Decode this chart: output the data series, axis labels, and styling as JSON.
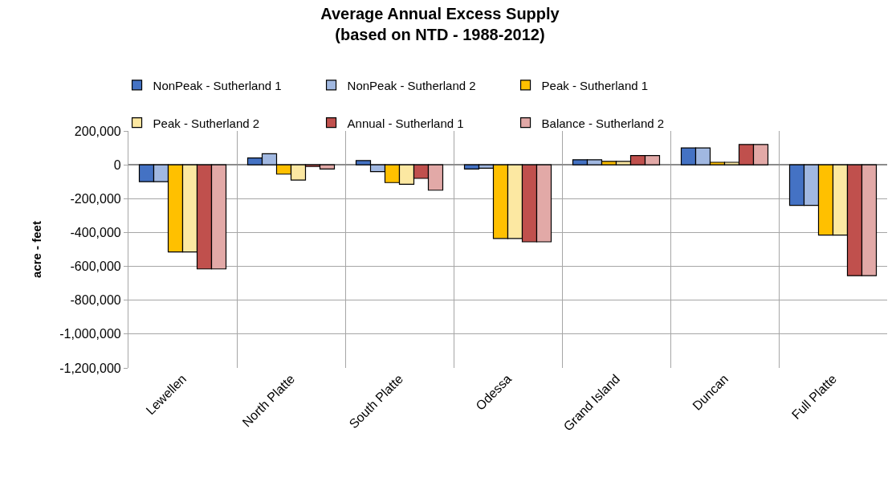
{
  "chart_data": {
    "type": "bar",
    "title": "Average Annual Excess Supply\n(based on NTD - 1988-2012)",
    "ylabel": "acre - feet",
    "categories": [
      "Lewellen",
      "North Platte",
      "South Platte",
      "Odessa",
      "Grand Island",
      "Duncan",
      "Full Platte"
    ],
    "series": [
      {
        "name": "NonPeak - Sutherland 1",
        "color": "#4472c4",
        "values": [
          -100000,
          40000,
          25000,
          -25000,
          30000,
          100000,
          -240000
        ]
      },
      {
        "name": "NonPeak - Sutherland 2",
        "color": "#a1b8e1",
        "values": [
          -100000,
          65000,
          -40000,
          -20000,
          30000,
          100000,
          -240000
        ]
      },
      {
        "name": "Peak - Sutherland 1",
        "color": "#ffc000",
        "values": [
          -515000,
          -55000,
          -105000,
          -435000,
          20000,
          15000,
          -415000
        ]
      },
      {
        "name": "Peak - Sutherland 2",
        "color": "#fce8a2",
        "values": [
          -515000,
          -90000,
          -115000,
          -435000,
          20000,
          15000,
          -415000
        ]
      },
      {
        "name": "Annual - Sutherland 1",
        "color": "#c0504d",
        "values": [
          -615000,
          -10000,
          -80000,
          -455000,
          55000,
          120000,
          -655000
        ]
      },
      {
        "name": "Balance - Sutherland 2",
        "color": "#e2a9a7",
        "values": [
          -615000,
          -25000,
          -150000,
          -455000,
          55000,
          120000,
          -655000
        ]
      }
    ],
    "ylim": [
      -1200000,
      200000
    ],
    "yticks": [
      {
        "value": 200000,
        "label": "200,000"
      },
      {
        "value": 0,
        "label": "0"
      },
      {
        "value": -200000,
        "label": "-200,000"
      },
      {
        "value": -400000,
        "label": "-400,000"
      },
      {
        "value": -600000,
        "label": "-600,000"
      },
      {
        "value": -800000,
        "label": "-800,000"
      },
      {
        "value": -1000000,
        "label": "-1,000,000"
      },
      {
        "value": -1200000,
        "label": "-1,200,000"
      }
    ],
    "grid": true,
    "legend": "top"
  }
}
